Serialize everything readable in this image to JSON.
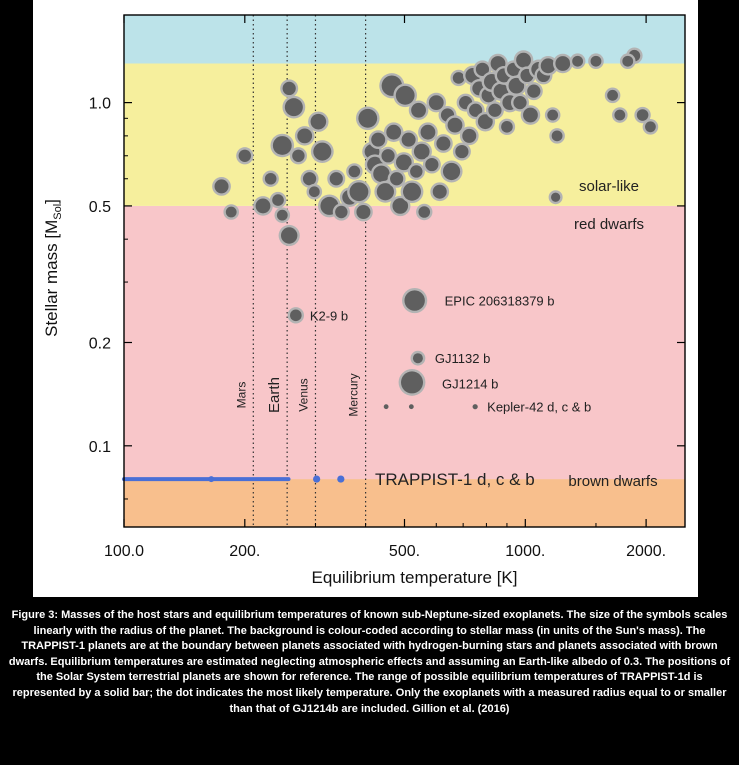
{
  "caption": "Figure 3: Masses of the host stars and equilibrium temperatures of known sub-Neptune-sized exoplanets. The size of the symbols scales linearly with the radius of the planet. The background is colour-coded according to stellar mass (in units of the Sun's mass). The TRAPPIST-1 planets are at the boundary between planets associated with hydrogen-burning stars and planets associated with brown dwarfs. Equilibrium temperatures are estimated neglecting atmospheric effects and assuming an Earth-like albedo of 0.3. The positions of the Solar System terrestrial planets are shown for reference. The range of possible equilibrium temperatures of TRAPPIST-1d is represented by a solid bar; the dot indicates the most likely temperature. Only the exoplanets with a measured radius equal to or smaller than that of GJ1214b are included. Gillion et al. (2016)",
  "chart_data": {
    "type": "scatter",
    "xlabel": "Equilibrium temperature [K]",
    "ylabel": "Stellar mass [M",
    "ylabel_sub": "Sol",
    "ylabel_close": "]",
    "xscale": "log",
    "yscale": "log",
    "xlim": [
      100,
      2500
    ],
    "ylim": [
      0.058,
      1.8
    ],
    "xticks": [
      100,
      200,
      500,
      1000,
      2000
    ],
    "xtick_labels": [
      "100.0",
      "200.",
      "500.",
      "1000.",
      "2000."
    ],
    "yticks": [
      0.1,
      0.2,
      0.5,
      1.0
    ],
    "ytick_labels": [
      "0.1",
      "0.2",
      "0.5",
      "1.0"
    ],
    "colors": {
      "brown_dwarf_band": "#f8bf8d",
      "red_dwarf_band": "#f8c6c9",
      "solar_band": "#f6ef9d",
      "upper_band": "#bce3e9",
      "planet_fill": "#5f5f5f",
      "planet_halo": "#b3b3b3",
      "trappist": "#4a6fd6"
    },
    "bands": [
      {
        "label": "brown dwarfs",
        "ymin": 0.058,
        "ymax": 0.08
      },
      {
        "label": "red dwarfs",
        "ymin": 0.08,
        "ymax": 0.5
      },
      {
        "label": "solar-like",
        "ymin": 0.5,
        "ymax": 1.3
      },
      {
        "label": "",
        "ymin": 1.3,
        "ymax": 1.8
      }
    ],
    "solar_system": [
      {
        "name": "Mars",
        "x": 210
      },
      {
        "name": "Earth",
        "x": 255
      },
      {
        "name": "Venus",
        "x": 300
      },
      {
        "name": "Mercury",
        "x": 400
      }
    ],
    "trappist": {
      "label": "TRAPPIST-1 d, c & b",
      "y": 0.08,
      "range": [
        100,
        257
      ],
      "points": [
        {
          "x": 165,
          "y": 0.08
        },
        {
          "x": 302,
          "y": 0.08
        },
        {
          "x": 347,
          "y": 0.08
        }
      ]
    },
    "labeled_planets": [
      {
        "label": "EPIC 206318379 b",
        "x": 530,
        "y": 0.265,
        "r": 0.9
      },
      {
        "label": "K2-9 b",
        "x": 268,
        "y": 0.24,
        "r": 0.35
      },
      {
        "label": "GJ1132 b",
        "x": 540,
        "y": 0.18,
        "r": 0.25
      },
      {
        "label": "GJ1214 b",
        "x": 522,
        "y": 0.153,
        "r": 1.0
      },
      {
        "label": "Kepler-42 d, c & b",
        "x": 750,
        "y": 0.13,
        "r": 0.12
      }
    ],
    "kepler42_extra": [
      {
        "x": 450,
        "y": 0.13,
        "r": 0.1
      },
      {
        "x": 520,
        "y": 0.13,
        "r": 0.12
      }
    ],
    "planets": [
      {
        "x": 175,
        "y": 0.57,
        "r": 0.5
      },
      {
        "x": 185,
        "y": 0.48,
        "r": 0.3
      },
      {
        "x": 200,
        "y": 0.7,
        "r": 0.4
      },
      {
        "x": 222,
        "y": 0.5,
        "r": 0.55
      },
      {
        "x": 232,
        "y": 0.6,
        "r": 0.35
      },
      {
        "x": 242,
        "y": 0.52,
        "r": 0.35
      },
      {
        "x": 248,
        "y": 0.47,
        "r": 0.3
      },
      {
        "x": 258,
        "y": 0.41,
        "r": 0.65
      },
      {
        "x": 248,
        "y": 0.75,
        "r": 0.8
      },
      {
        "x": 258,
        "y": 1.1,
        "r": 0.45
      },
      {
        "x": 265,
        "y": 0.97,
        "r": 0.75
      },
      {
        "x": 272,
        "y": 0.7,
        "r": 0.4
      },
      {
        "x": 282,
        "y": 0.8,
        "r": 0.55
      },
      {
        "x": 290,
        "y": 0.6,
        "r": 0.45
      },
      {
        "x": 298,
        "y": 0.55,
        "r": 0.3
      },
      {
        "x": 305,
        "y": 0.88,
        "r": 0.6
      },
      {
        "x": 312,
        "y": 0.72,
        "r": 0.75
      },
      {
        "x": 325,
        "y": 0.5,
        "r": 0.75
      },
      {
        "x": 338,
        "y": 0.6,
        "r": 0.45
      },
      {
        "x": 348,
        "y": 0.48,
        "r": 0.4
      },
      {
        "x": 365,
        "y": 0.53,
        "r": 0.55
      },
      {
        "x": 375,
        "y": 0.63,
        "r": 0.35
      },
      {
        "x": 385,
        "y": 0.55,
        "r": 0.8
      },
      {
        "x": 395,
        "y": 0.48,
        "r": 0.5
      },
      {
        "x": 405,
        "y": 0.9,
        "r": 0.8
      },
      {
        "x": 415,
        "y": 0.72,
        "r": 0.55
      },
      {
        "x": 422,
        "y": 0.66,
        "r": 0.6
      },
      {
        "x": 430,
        "y": 0.78,
        "r": 0.5
      },
      {
        "x": 438,
        "y": 0.62,
        "r": 0.65
      },
      {
        "x": 448,
        "y": 0.55,
        "r": 0.7
      },
      {
        "x": 455,
        "y": 0.7,
        "r": 0.45
      },
      {
        "x": 465,
        "y": 1.12,
        "r": 0.9
      },
      {
        "x": 470,
        "y": 0.82,
        "r": 0.55
      },
      {
        "x": 478,
        "y": 0.6,
        "r": 0.45
      },
      {
        "x": 488,
        "y": 0.5,
        "r": 0.6
      },
      {
        "x": 498,
        "y": 0.67,
        "r": 0.6
      },
      {
        "x": 502,
        "y": 1.05,
        "r": 0.8
      },
      {
        "x": 512,
        "y": 0.78,
        "r": 0.5
      },
      {
        "x": 522,
        "y": 0.55,
        "r": 0.75
      },
      {
        "x": 535,
        "y": 0.63,
        "r": 0.4
      },
      {
        "x": 542,
        "y": 0.95,
        "r": 0.55
      },
      {
        "x": 552,
        "y": 0.72,
        "r": 0.6
      },
      {
        "x": 560,
        "y": 0.48,
        "r": 0.35
      },
      {
        "x": 572,
        "y": 0.82,
        "r": 0.55
      },
      {
        "x": 585,
        "y": 0.66,
        "r": 0.45
      },
      {
        "x": 600,
        "y": 1.0,
        "r": 0.55
      },
      {
        "x": 612,
        "y": 0.55,
        "r": 0.5
      },
      {
        "x": 625,
        "y": 0.76,
        "r": 0.5
      },
      {
        "x": 640,
        "y": 0.92,
        "r": 0.45
      },
      {
        "x": 655,
        "y": 0.63,
        "r": 0.7
      },
      {
        "x": 668,
        "y": 0.86,
        "r": 0.55
      },
      {
        "x": 682,
        "y": 1.18,
        "r": 0.35
      },
      {
        "x": 695,
        "y": 0.72,
        "r": 0.45
      },
      {
        "x": 710,
        "y": 1.0,
        "r": 0.45
      },
      {
        "x": 725,
        "y": 0.8,
        "r": 0.5
      },
      {
        "x": 740,
        "y": 1.2,
        "r": 0.55
      },
      {
        "x": 752,
        "y": 0.95,
        "r": 0.45
      },
      {
        "x": 768,
        "y": 1.1,
        "r": 0.5
      },
      {
        "x": 782,
        "y": 1.25,
        "r": 0.45
      },
      {
        "x": 795,
        "y": 0.88,
        "r": 0.55
      },
      {
        "x": 810,
        "y": 1.05,
        "r": 0.5
      },
      {
        "x": 825,
        "y": 1.15,
        "r": 0.6
      },
      {
        "x": 840,
        "y": 0.95,
        "r": 0.45
      },
      {
        "x": 855,
        "y": 1.3,
        "r": 0.55
      },
      {
        "x": 870,
        "y": 1.08,
        "r": 0.55
      },
      {
        "x": 885,
        "y": 1.2,
        "r": 0.5
      },
      {
        "x": 900,
        "y": 0.85,
        "r": 0.35
      },
      {
        "x": 915,
        "y": 1.0,
        "r": 0.55
      },
      {
        "x": 935,
        "y": 1.25,
        "r": 0.45
      },
      {
        "x": 950,
        "y": 1.12,
        "r": 0.6
      },
      {
        "x": 970,
        "y": 1.0,
        "r": 0.45
      },
      {
        "x": 990,
        "y": 1.33,
        "r": 0.55
      },
      {
        "x": 1010,
        "y": 1.2,
        "r": 0.45
      },
      {
        "x": 1030,
        "y": 0.92,
        "r": 0.55
      },
      {
        "x": 1050,
        "y": 1.08,
        "r": 0.45
      },
      {
        "x": 1080,
        "y": 1.25,
        "r": 0.55
      },
      {
        "x": 1110,
        "y": 1.2,
        "r": 0.45
      },
      {
        "x": 1140,
        "y": 1.28,
        "r": 0.55
      },
      {
        "x": 1170,
        "y": 0.92,
        "r": 0.3
      },
      {
        "x": 1200,
        "y": 0.8,
        "r": 0.3
      },
      {
        "x": 1240,
        "y": 1.3,
        "r": 0.55
      },
      {
        "x": 1190,
        "y": 0.53,
        "r": 0.2
      },
      {
        "x": 1350,
        "y": 1.32,
        "r": 0.3
      },
      {
        "x": 1500,
        "y": 1.32,
        "r": 0.3
      },
      {
        "x": 1650,
        "y": 1.05,
        "r": 0.3
      },
      {
        "x": 1720,
        "y": 0.92,
        "r": 0.3
      },
      {
        "x": 1870,
        "y": 1.37,
        "r": 0.35
      },
      {
        "x": 1960,
        "y": 0.92,
        "r": 0.35
      },
      {
        "x": 2050,
        "y": 0.85,
        "r": 0.3
      },
      {
        "x": 1800,
        "y": 1.32,
        "r": 0.3
      }
    ]
  }
}
